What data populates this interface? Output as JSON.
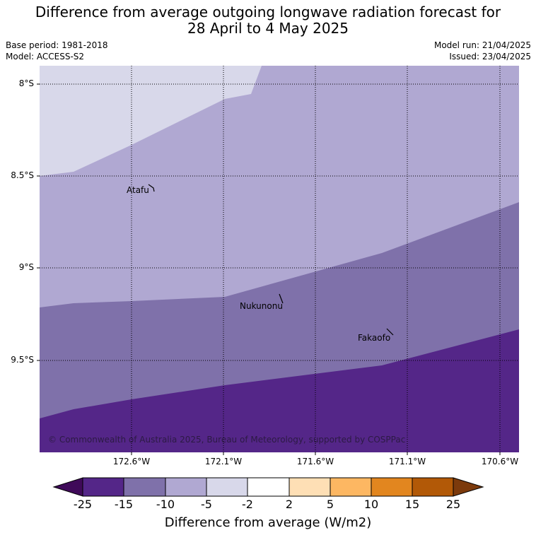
{
  "title": {
    "line1": "Difference from average outgoing longwave radiation forecast for",
    "line2": "28 April to 4 May 2025"
  },
  "meta": {
    "base_period": "Base period: 1981-2018",
    "model": "Model: ACCESS-S2",
    "model_run": "Model run: 21/04/2025",
    "issued": "Issued: 23/04/2025"
  },
  "map": {
    "copyright": "© Commonwealth of Australia 2025, Bureau of Meteorology, supported by COSPPac",
    "places": [
      {
        "name": "Atafu"
      },
      {
        "name": "Nukunonu"
      },
      {
        "name": "Fakaofo"
      }
    ],
    "x_ticks": [
      "172.6°W",
      "172.1°W",
      "171.6°W",
      "171.1°W",
      "170.6°W"
    ],
    "y_ticks": [
      "8°S",
      "8.5°S",
      "9°S",
      "9.5°S"
    ],
    "colors": {
      "band_-2_2": "#d8d8ea",
      "band_-5_-2": "#b0a8d2",
      "band_-10_-5": "#7f71aa",
      "band_-15_-10": "#542688"
    }
  },
  "colorbar": {
    "title": "Difference from average (W/m2)",
    "ticks": [
      "-25",
      "-15",
      "-10",
      "-5",
      "-2",
      "2",
      "5",
      "10",
      "15",
      "25"
    ],
    "colors": [
      "#3f0a59",
      "#542688",
      "#7f71aa",
      "#b0a8d2",
      "#d8d8ea",
      "#ffffff",
      "#fedfb5",
      "#fdb762",
      "#e2861f",
      "#b25907",
      "#7c3a0c"
    ]
  }
}
